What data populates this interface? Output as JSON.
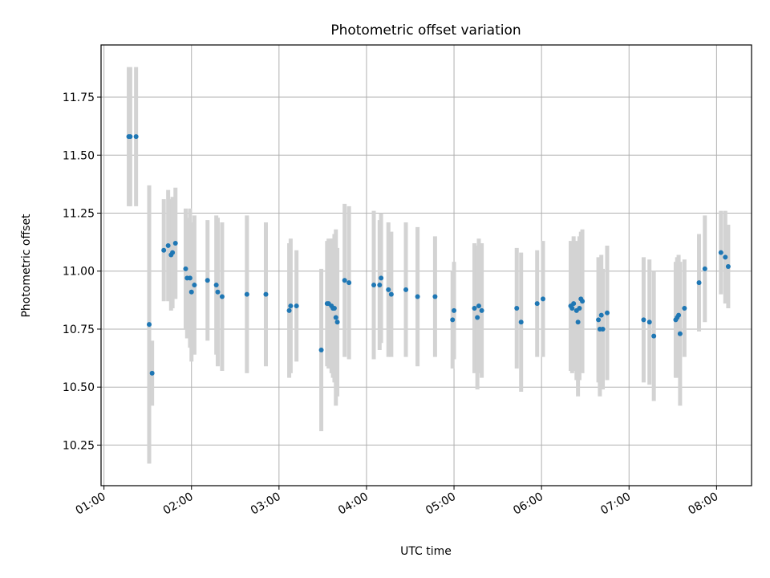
{
  "chart_data": {
    "type": "scatter",
    "title": "Photometric offset variation",
    "xlabel": "UTC time",
    "ylabel": "Photometric offset",
    "xlim": [
      "00:58",
      "08:24"
    ],
    "ylim": [
      10.075,
      11.975
    ],
    "x_ticks": [
      "01:00",
      "02:00",
      "03:00",
      "04:00",
      "05:00",
      "06:00",
      "07:00",
      "08:00"
    ],
    "y_ticks": [
      10.25,
      10.5,
      10.75,
      11.0,
      11.25,
      11.5,
      11.75
    ],
    "y_tick_labels": [
      "10.25",
      "10.50",
      "10.75",
      "11.00",
      "11.25",
      "11.50",
      "11.75"
    ],
    "grid": true,
    "colors": {
      "point": "#1f77b4",
      "errorbar": "#d3d3d3",
      "grid": "#b0b0b0"
    },
    "series": [
      {
        "points": [
          [
            "01:17",
            11.58,
            0.3
          ],
          [
            "01:18",
            11.58,
            0.3
          ],
          [
            "01:22",
            11.58,
            0.3
          ],
          [
            "01:31",
            10.77,
            0.6
          ],
          [
            "01:33",
            10.56,
            0.14
          ],
          [
            "01:41",
            11.09,
            0.22
          ],
          [
            "01:44",
            11.11,
            0.24
          ],
          [
            "01:46",
            11.07,
            0.24
          ],
          [
            "01:47",
            11.08,
            0.24
          ],
          [
            "01:49",
            11.12,
            0.24
          ],
          [
            "01:56",
            11.01,
            0.26
          ],
          [
            "01:57",
            10.97,
            0.26
          ],
          [
            "01:59",
            10.97,
            0.3
          ],
          [
            "02:00",
            10.91,
            0.3
          ],
          [
            "02:02",
            10.94,
            0.3
          ],
          [
            "02:11",
            10.96,
            0.26
          ],
          [
            "02:17",
            10.94,
            0.3
          ],
          [
            "02:18",
            10.91,
            0.32
          ],
          [
            "02:21",
            10.89,
            0.32
          ],
          [
            "02:38",
            10.9,
            0.34
          ],
          [
            "02:51",
            10.9,
            0.31
          ],
          [
            "03:07",
            10.83,
            0.29
          ],
          [
            "03:08",
            10.85,
            0.29
          ],
          [
            "03:12",
            10.85,
            0.24
          ],
          [
            "03:29",
            10.66,
            0.35
          ],
          [
            "03:33",
            10.86,
            0.27
          ],
          [
            "03:34",
            10.86,
            0.28
          ],
          [
            "03:36",
            10.85,
            0.29
          ],
          [
            "03:37",
            10.84,
            0.3
          ],
          [
            "03:38",
            10.84,
            0.32
          ],
          [
            "03:39",
            10.8,
            0.38
          ],
          [
            "03:40",
            10.78,
            0.32
          ],
          [
            "03:45",
            10.96,
            0.33
          ],
          [
            "03:48",
            10.95,
            0.33
          ],
          [
            "04:05",
            10.94,
            0.32
          ],
          [
            "04:09",
            10.94,
            0.28
          ],
          [
            "04:10",
            10.97,
            0.28
          ],
          [
            "04:15",
            10.92,
            0.29
          ],
          [
            "04:17",
            10.9,
            0.27
          ],
          [
            "04:27",
            10.92,
            0.29
          ],
          [
            "04:35",
            10.89,
            0.3
          ],
          [
            "04:47",
            10.89,
            0.26
          ],
          [
            "04:59",
            10.79,
            0.21
          ],
          [
            "05:00",
            10.83,
            0.21
          ],
          [
            "05:14",
            10.84,
            0.28
          ],
          [
            "05:16",
            10.8,
            0.31
          ],
          [
            "05:17",
            10.85,
            0.29
          ],
          [
            "05:19",
            10.83,
            0.29
          ],
          [
            "05:43",
            10.84,
            0.26
          ],
          [
            "05:46",
            10.78,
            0.3
          ],
          [
            "05:57",
            10.86,
            0.23
          ],
          [
            "06:01",
            10.88,
            0.25
          ],
          [
            "06:20",
            10.85,
            0.28
          ],
          [
            "06:21",
            10.84,
            0.28
          ],
          [
            "06:22",
            10.86,
            0.29
          ],
          [
            "06:24",
            10.83,
            0.3
          ],
          [
            "06:25",
            10.78,
            0.32
          ],
          [
            "06:26",
            10.84,
            0.31
          ],
          [
            "06:27",
            10.88,
            0.29
          ],
          [
            "06:28",
            10.87,
            0.31
          ],
          [
            "06:39",
            10.79,
            0.27
          ],
          [
            "06:40",
            10.75,
            0.29
          ],
          [
            "06:41",
            10.81,
            0.26
          ],
          [
            "06:42",
            10.75,
            0.26
          ],
          [
            "06:45",
            10.82,
            0.29
          ],
          [
            "07:10",
            10.79,
            0.27
          ],
          [
            "07:14",
            10.78,
            0.27
          ],
          [
            "07:17",
            10.72,
            0.28
          ],
          [
            "07:32",
            10.79,
            0.25
          ],
          [
            "07:33",
            10.8,
            0.26
          ],
          [
            "07:34",
            10.81,
            0.26
          ],
          [
            "07:35",
            10.73,
            0.31
          ],
          [
            "07:38",
            10.84,
            0.21
          ],
          [
            "07:48",
            10.95,
            0.21
          ],
          [
            "07:52",
            11.01,
            0.23
          ],
          [
            "08:03",
            11.08,
            0.18
          ],
          [
            "08:06",
            11.06,
            0.2
          ],
          [
            "08:08",
            11.02,
            0.18
          ]
        ]
      }
    ]
  }
}
